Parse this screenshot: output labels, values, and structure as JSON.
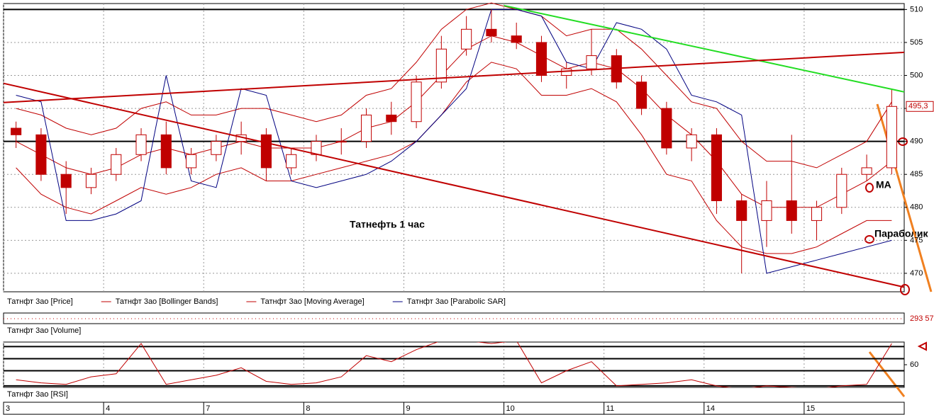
{
  "chart_data": {
    "type": "candlestick",
    "title": "Татнефть   1 час",
    "categories": [
      "3",
      null,
      null,
      null,
      "4",
      null,
      null,
      null,
      "7",
      null,
      null,
      null,
      "8",
      null,
      null,
      null,
      "9",
      null,
      null,
      null,
      "10",
      null,
      null,
      null,
      "11",
      null,
      null,
      null,
      "14",
      null,
      null,
      null,
      "15",
      null,
      null,
      null
    ],
    "open": [
      492,
      491,
      485,
      483,
      485,
      488,
      491,
      486,
      488,
      490,
      491,
      486,
      488,
      490,
      490,
      494,
      493,
      499,
      504,
      507,
      506,
      505,
      500,
      501,
      503,
      499,
      495,
      489,
      491,
      481,
      478,
      481,
      478,
      480,
      485,
      486
    ],
    "high": [
      493,
      492,
      487,
      486,
      489,
      492,
      493,
      489,
      491,
      493,
      492,
      489,
      491,
      492,
      495,
      496,
      500,
      506,
      509,
      510,
      508,
      506,
      502,
      507,
      504,
      500,
      496,
      492,
      492,
      482,
      484,
      491,
      481,
      486,
      488,
      498
    ],
    "low": [
      489,
      484,
      479,
      482,
      484,
      487,
      485,
      485,
      487,
      488,
      484,
      485,
      487,
      488,
      489,
      491,
      492,
      498,
      503,
      505,
      504,
      499,
      498,
      500,
      498,
      494,
      488,
      487,
      479,
      470,
      474,
      476,
      475,
      479,
      484,
      485
    ],
    "close": [
      491,
      485,
      483,
      485,
      488,
      491,
      486,
      488,
      490,
      491,
      486,
      488,
      490,
      490,
      494,
      493,
      499,
      504,
      507,
      506,
      505,
      500,
      501,
      503,
      499,
      495,
      489,
      491,
      481,
      478,
      481,
      478,
      480,
      485,
      486,
      495.3
    ],
    "series": [
      {
        "name": "Татнфт 3ао [Bollinger Bands]",
        "color": "#c00000",
        "values": [
          495,
          494,
          492,
          491,
          492,
          495,
          496,
          494,
          494,
          495,
          495,
          494,
          493,
          494,
          497,
          498,
          502,
          507,
          510,
          511,
          510,
          509,
          506,
          507,
          507,
          504,
          500,
          496,
          495,
          490,
          487,
          487,
          486,
          488,
          490,
          496
        ]
      },
      {
        "name": "Татнфт 3ао [Bollinger Bands]",
        "color": "#c00000",
        "values": [
          486,
          482,
          480,
          479,
          481,
          483,
          482,
          483,
          485,
          486,
          484,
          484,
          485,
          486,
          487,
          488,
          490,
          494,
          499,
          502,
          501,
          497,
          497,
          498,
          496,
          491,
          485,
          484,
          478,
          474,
          473,
          473,
          474,
          476,
          478,
          478
        ]
      },
      {
        "name": "Татнфт 3ао [Moving Average]",
        "color": "#c00000",
        "values": [
          490,
          488,
          486,
          485,
          486,
          488,
          489,
          488,
          489,
          490,
          489,
          489,
          489,
          490,
          492,
          493,
          496,
          500,
          504,
          506,
          505,
          503,
          501,
          502,
          501,
          498,
          494,
          491,
          487,
          482,
          480,
          480,
          480,
          482,
          484,
          487
        ]
      },
      {
        "name": "Татнфт 3ао [Parabolic SAR]",
        "color": "#000080",
        "values": [
          497,
          496,
          478,
          478,
          479,
          481,
          500,
          484,
          483,
          498,
          497,
          484,
          483,
          484,
          485,
          487,
          490,
          494,
          498,
          510,
          510,
          509,
          502,
          501,
          508,
          507,
          504,
          497,
          496,
          494,
          470,
          471,
          472,
          473,
          474,
          475
        ]
      }
    ],
    "price_name": "Татнфт 3ао [Price]",
    "price_color": "#c00000",
    "ylim": [
      467.2,
      510.9
    ],
    "yticks": [
      470,
      475,
      480,
      485,
      490,
      495,
      500,
      505,
      510
    ],
    "last_price": {
      "value": 495.3,
      "label": "495,3"
    },
    "grid": true,
    "xlim": [
      0,
      36
    ],
    "hlines": [
      510,
      490
    ],
    "trendlines": [
      {
        "color": "#22dd22",
        "x": [
          20,
          36
        ],
        "y": [
          510.6,
          497.5
        ]
      },
      {
        "color": "#c00000",
        "x": [
          0,
          36
        ],
        "y": [
          495.9,
          503.5
        ]
      },
      {
        "color": "#c00000",
        "x": [
          0,
          36
        ],
        "y": [
          498.8,
          467.9
        ]
      }
    ],
    "annotations": [
      "MA",
      "Параболик"
    ],
    "volume": {
      "label": "Татнфт 3ао [Volume]",
      "last_label": "293 57"
    },
    "rsi": {
      "label": "Татнфт 3ао [RSI]",
      "color": "#c00000",
      "ylim": [
        45,
        75
      ],
      "yticks": [
        60
      ],
      "levels": [
        72,
        64,
        56,
        46
      ],
      "values": [
        50,
        48,
        47,
        52,
        54,
        74,
        47,
        50,
        53,
        58,
        49,
        47,
        48,
        52,
        66,
        62,
        70,
        76,
        76,
        74,
        76,
        48,
        56,
        62,
        46,
        47,
        48,
        50,
        46,
        44,
        46,
        45,
        44,
        46,
        47,
        74
      ]
    }
  }
}
